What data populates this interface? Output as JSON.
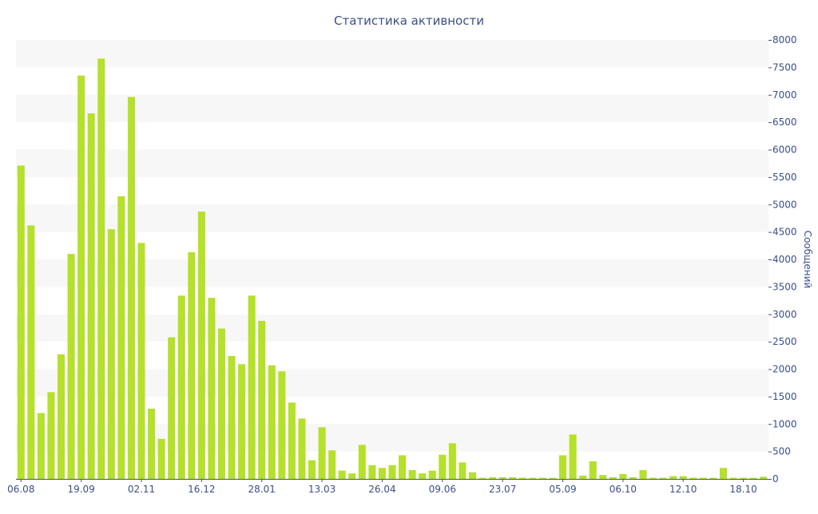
{
  "colors": {
    "bar": "#b5e02b",
    "text": "#3b4f87",
    "band": "#f7f7f7",
    "axis": "#3b4f87"
  },
  "chart_data": {
    "type": "bar",
    "title": "Статистика активности",
    "ylabel": "Сообщений",
    "xlabel": "",
    "ylim": [
      0,
      8000
    ],
    "yticks": [
      0,
      500,
      1000,
      1500,
      2000,
      2500,
      3000,
      3500,
      4000,
      4500,
      5000,
      5500,
      6000,
      6500,
      7000,
      7500,
      8000
    ],
    "xtick_labels": [
      {
        "index": 0,
        "label": "06.08"
      },
      {
        "index": 6,
        "label": "19.09"
      },
      {
        "index": 12,
        "label": "02.11"
      },
      {
        "index": 18,
        "label": "16.12"
      },
      {
        "index": 24,
        "label": "28.01"
      },
      {
        "index": 30,
        "label": "13.03"
      },
      {
        "index": 36,
        "label": "26.04"
      },
      {
        "index": 42,
        "label": "09.06"
      },
      {
        "index": 48,
        "label": "23.07"
      },
      {
        "index": 54,
        "label": "05.09"
      },
      {
        "index": 60,
        "label": "06.10"
      },
      {
        "index": 66,
        "label": "12.10"
      },
      {
        "index": 72,
        "label": "18.10"
      }
    ],
    "values": [
      5710,
      4620,
      1200,
      1580,
      2270,
      4100,
      7350,
      6660,
      7660,
      4550,
      5150,
      6960,
      4300,
      1280,
      730,
      2580,
      3340,
      4130,
      4870,
      3300,
      2740,
      2240,
      2090,
      3340,
      2880,
      2070,
      1960,
      1390,
      1100,
      340,
      940,
      520,
      150,
      100,
      620,
      250,
      200,
      250,
      430,
      160,
      100,
      150,
      440,
      650,
      300,
      120,
      20,
      30,
      30,
      30,
      20,
      20,
      20,
      20,
      430,
      810,
      60,
      320,
      70,
      30,
      90,
      30,
      160,
      20,
      20,
      50,
      50,
      20,
      20,
      20,
      200,
      20,
      20,
      20,
      40
    ],
    "grid": "alternating horizontal bands",
    "yaxis_side": "right"
  }
}
